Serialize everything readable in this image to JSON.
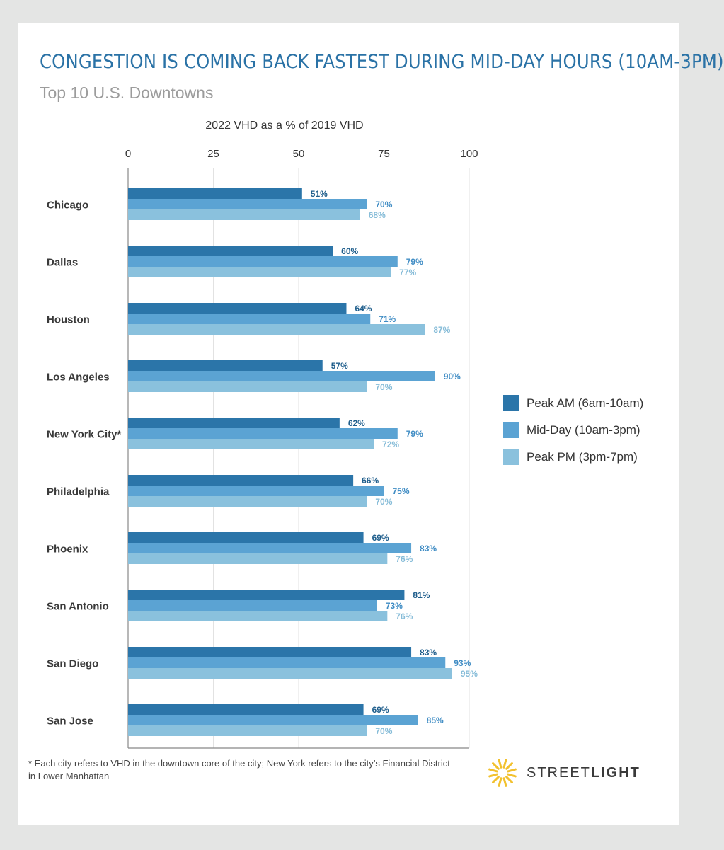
{
  "title": "CONGESTION IS COMING BACK FASTEST DURING MID-DAY HOURS (10AM-3PM)",
  "subtitle": "Top 10 U.S. Downtowns",
  "footnote": "* Each city refers to VHD in the downtown core of the city; New York refers to the city’s Financial District in Lower Manhattan",
  "logo": {
    "text_light": "STREET",
    "text_bold": "LIGHT",
    "icon": "sun-burst-icon",
    "color": "#f2c12e"
  },
  "chart_data": {
    "type": "bar",
    "orientation": "horizontal",
    "xlabel": "2022 VHD as a % of 2019 VHD",
    "xlim": [
      0,
      100
    ],
    "xticks": [
      0,
      25,
      50,
      75,
      100
    ],
    "grid": true,
    "legend_position": "right",
    "categories": [
      "Chicago",
      "Dallas",
      "Houston",
      "Los Angeles",
      "New York City*",
      "Philadelphia",
      "Phoenix",
      "San Antonio",
      "San Diego",
      "San Jose"
    ],
    "series": [
      {
        "name": "Peak AM (6am-10am)",
        "color": "#2b75a9",
        "labelColor": "#1f5e8c",
        "values": [
          51,
          60,
          64,
          57,
          62,
          66,
          69,
          81,
          83,
          69
        ]
      },
      {
        "name": "Mid-Day (10am-3pm)",
        "color": "#5ba3d3",
        "labelColor": "#3f8cc4",
        "values": [
          70,
          79,
          71,
          90,
          79,
          75,
          83,
          73,
          93,
          85
        ]
      },
      {
        "name": "Peak PM (3pm-7pm)",
        "color": "#8ac1dd",
        "labelColor": "#86bcd8",
        "values": [
          68,
          77,
          87,
          70,
          72,
          70,
          76,
          76,
          95,
          70
        ]
      }
    ],
    "data_labels": {
      "Peak AM (6am-10am)": [
        "51%",
        "60%",
        "64%",
        "57%",
        "62%",
        "66%",
        "69%",
        "81%",
        "83%",
        "69%"
      ],
      "Mid-Day (10am-3pm)": [
        "70%",
        "79%",
        "71%",
        "90%",
        "79%",
        "75%",
        "83%",
        "73%",
        "93%",
        "85%"
      ],
      "Peak PM (3pm-7pm)": [
        "68%",
        "77%",
        "87%",
        "70%",
        "72%",
        "70%",
        "76%",
        "76%",
        "95%",
        "70%"
      ]
    }
  }
}
